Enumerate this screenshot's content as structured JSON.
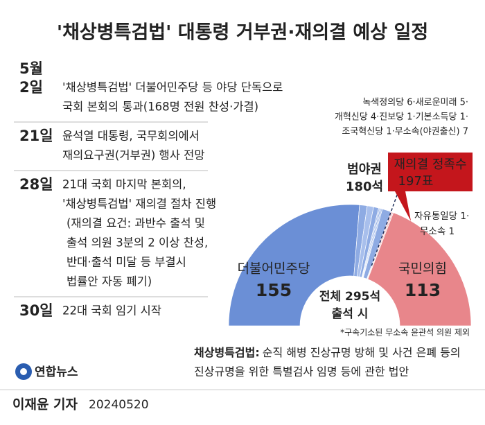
{
  "title": "'채상병특검법' 대통령 거부권·재의결 예상 일정",
  "timeline": [
    {
      "date": [
        "5월",
        "2일"
      ],
      "lines": [
        "'채상병특검법' 더불어민주당 등 야당 단독으로",
        "국회 본회의 통과(168명 전원 찬성·가결)"
      ]
    },
    {
      "date": [
        "21일"
      ],
      "lines": [
        "윤석열 대통령, 국무회의에서",
        "재의요구권(거부권) 행사 전망"
      ]
    },
    {
      "date": [
        "28일"
      ],
      "lines": [
        "21대 국회 마지막 본회의,",
        "'채상병특검법' 재의결 절차 진행",
        "(재의결 요건: 과반수 출석 및",
        "출석 의원 3분의 2 이상 찬성,",
        "반대·출석 미달 등 부결시",
        "법률안 자동 폐기)"
      ]
    },
    {
      "date": [
        "30일"
      ],
      "lines": [
        "22대 국회 임기 시작"
      ]
    }
  ],
  "chart_data": {
    "type": "pie",
    "half": true,
    "categories": [
      "더불어민주당",
      null,
      null,
      null,
      null,
      null,
      null,
      null,
      null,
      null,
      "국민의힘"
    ],
    "values": [
      155,
      6,
      5,
      4,
      1,
      1,
      1,
      7,
      1,
      1,
      113
    ],
    "colors": [
      "#6b8fd6",
      "#8eabe3",
      "#a8bfec",
      "#8eabe3",
      "#a8bfec",
      "#8eabe3",
      "#a8bfec",
      "#8eabe3",
      "#efb0b3",
      "#f2c2c4",
      "#e8868b"
    ],
    "total_label": [
      "전체 295석",
      "출석 시"
    ],
    "opposition": {
      "value": 180,
      "name": "범야권",
      "label": "180석"
    },
    "threshold": {
      "value": 197,
      "name": "재의결 정족수",
      "label": "197표"
    },
    "minor_opposition_note": [
      "녹색정의당 6·새로운미래 5·",
      "개혁신당 4·진보당 1·기본소득당 1·",
      "조국혁신당 1·무소속(야권출신) 7"
    ],
    "minor_ruling_note": [
      "자유통일당 1·",
      "무소속 1"
    ],
    "footnote": "*구속기소된 무소속 윤관석 의원 제외"
  },
  "definition": {
    "term": "채상병특검법:",
    "lines": [
      "순직 해병 진상규명 방해 및 사건 은폐 등의",
      "진상규명을 위한 특별검사 임명 등에 관한 법안"
    ]
  },
  "logo": "연합뉴스",
  "credit": "이재윤 기자",
  "date": "20240520"
}
